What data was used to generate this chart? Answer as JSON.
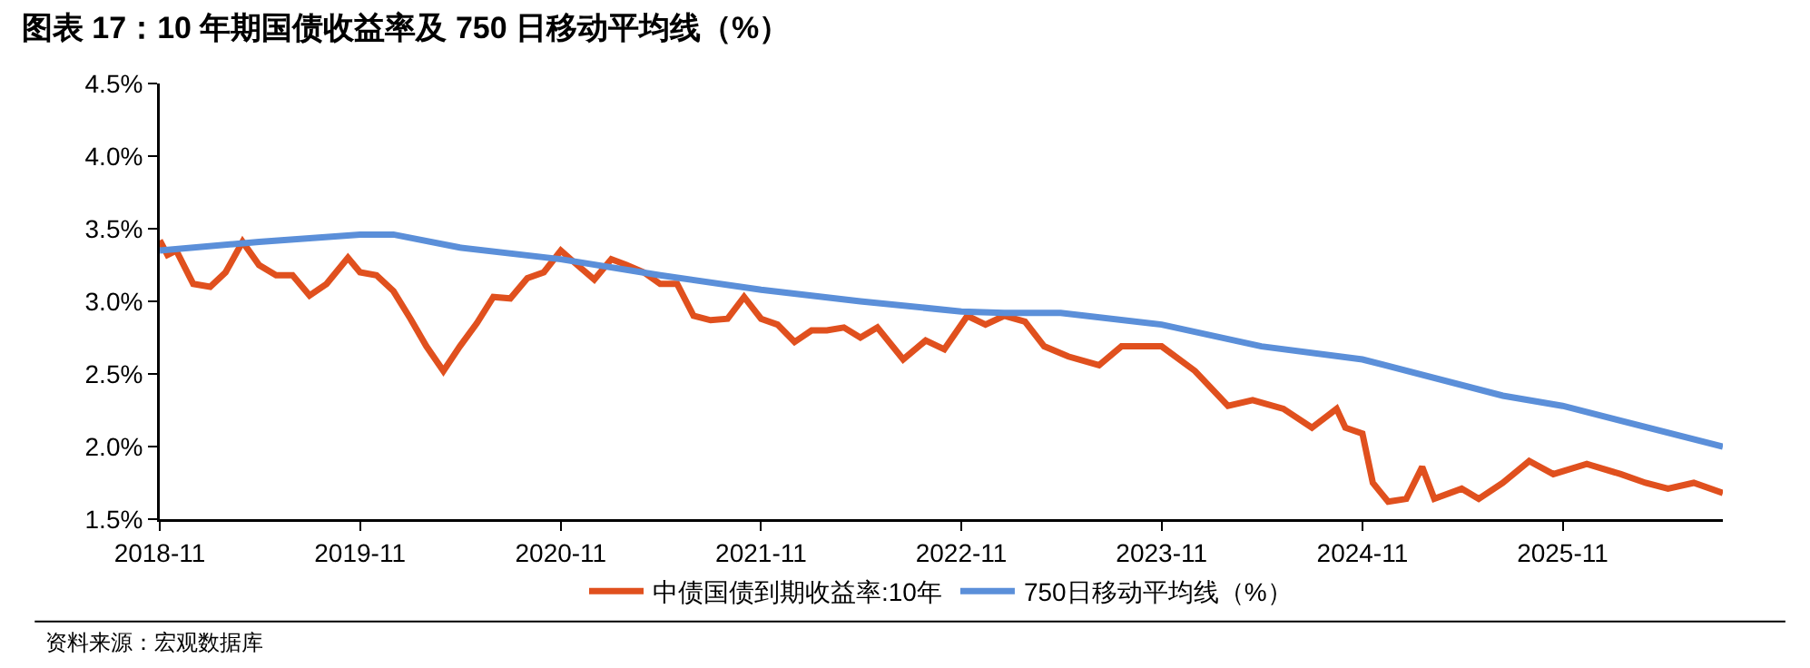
{
  "chart_data": {
    "type": "line",
    "title": "图表 17：10 年期国债收益率及 750 日移动平均线（%）",
    "annotations": [
      "资料来源：宏观数据库"
    ],
    "xlim": [
      "2018-11-01",
      "2026-08-20"
    ],
    "xticks": [
      "2018-11",
      "2019-11",
      "2020-11",
      "2021-11",
      "2022-11",
      "2023-11",
      "2024-11",
      "2025-11"
    ],
    "ylim": [
      1.5,
      4.5
    ],
    "yticks": [
      {
        "value": 1.5,
        "label": "1.5%"
      },
      {
        "value": 2.0,
        "label": "2.0%"
      },
      {
        "value": 2.5,
        "label": "2.5%"
      },
      {
        "value": 3.0,
        "label": "3.0%"
      },
      {
        "value": 3.5,
        "label": "3.5%"
      },
      {
        "value": 4.0,
        "label": "4.0%"
      },
      {
        "value": 4.5,
        "label": "4.5%"
      }
    ],
    "grid": false,
    "legend": "bottom",
    "marker": "none",
    "line_style": "solid",
    "series": [
      {
        "name": "中债国债到期收益率:10年",
        "color": "#e0501e",
        "x": [
          "2018-11-01",
          "2018-11-15",
          "2018-12-01",
          "2019-01-01",
          "2019-02-01",
          "2019-03-01",
          "2019-04-01",
          "2019-05-01",
          "2019-06-01",
          "2019-07-01",
          "2019-08-01",
          "2019-09-01",
          "2019-10-10",
          "2019-11-01",
          "2019-12-01",
          "2020-01-01",
          "2020-02-01",
          "2020-03-01",
          "2020-04-01",
          "2020-05-01",
          "2020-06-01",
          "2020-07-01",
          "2020-08-01",
          "2020-09-01",
          "2020-10-01",
          "2020-11-01",
          "2020-12-01",
          "2021-01-01",
          "2021-02-01",
          "2021-03-01",
          "2021-04-01",
          "2021-05-01",
          "2021-06-01",
          "2021-07-01",
          "2021-08-01",
          "2021-09-01",
          "2021-10-01",
          "2021-11-01",
          "2021-12-01",
          "2022-01-01",
          "2022-02-01",
          "2022-03-01",
          "2022-04-01",
          "2022-05-01",
          "2022-06-01",
          "2022-07-18",
          "2022-08-28",
          "2022-10-01",
          "2022-11-12",
          "2022-12-15",
          "2023-01-18",
          "2023-02-25",
          "2023-04-01",
          "2023-05-15",
          "2023-07-10",
          "2023-08-20",
          "2023-11-01",
          "2024-01-01",
          "2024-03-01",
          "2024-04-15",
          "2024-06-10",
          "2024-08-01",
          "2024-09-15",
          "2024-10-01",
          "2024-11-01",
          "2024-11-20",
          "2024-12-18",
          "2025-01-20",
          "2025-02-18",
          "2025-03-12",
          "2025-05-01",
          "2025-06-01",
          "2025-07-15",
          "2025-09-01",
          "2025-10-15",
          "2025-12-15",
          "2026-02-15",
          "2026-04-01",
          "2026-05-12",
          "2026-06-28",
          "2026-08-20"
        ],
        "values": [
          3.42,
          3.32,
          3.35,
          3.12,
          3.1,
          3.2,
          3.41,
          3.25,
          3.18,
          3.18,
          3.04,
          3.12,
          3.3,
          3.2,
          3.18,
          3.07,
          2.88,
          2.69,
          2.52,
          2.69,
          2.85,
          3.03,
          3.02,
          3.16,
          3.2,
          3.35,
          3.25,
          3.15,
          3.29,
          3.25,
          3.2,
          3.12,
          3.12,
          2.9,
          2.87,
          2.88,
          3.03,
          2.88,
          2.84,
          2.72,
          2.8,
          2.8,
          2.82,
          2.75,
          2.82,
          2.6,
          2.73,
          2.67,
          2.9,
          2.84,
          2.9,
          2.86,
          2.69,
          2.62,
          2.56,
          2.69,
          2.69,
          2.52,
          2.28,
          2.32,
          2.26,
          2.13,
          2.26,
          2.13,
          2.09,
          1.75,
          1.62,
          1.64,
          1.86,
          1.64,
          1.71,
          1.64,
          1.75,
          1.9,
          1.81,
          1.88,
          1.81,
          1.75,
          1.71,
          1.75,
          1.68
        ]
      },
      {
        "name": "750日移动平均线（%）",
        "color": "#5b8fd9",
        "x": [
          "2018-11-01",
          "2019-05-01",
          "2019-11-01",
          "2020-01-01",
          "2020-05-01",
          "2020-11-01",
          "2021-05-01",
          "2021-11-01",
          "2022-05-01",
          "2022-11-01",
          "2023-01-18",
          "2023-05-01",
          "2023-11-01",
          "2024-05-01",
          "2024-11-01",
          "2025-07-15",
          "2025-11-01",
          "2026-08-20"
        ],
        "values": [
          3.35,
          3.41,
          3.46,
          3.46,
          3.37,
          3.29,
          3.18,
          3.08,
          3.0,
          2.93,
          2.92,
          2.92,
          2.84,
          2.69,
          2.6,
          2.35,
          2.28,
          2.0
        ]
      }
    ]
  }
}
